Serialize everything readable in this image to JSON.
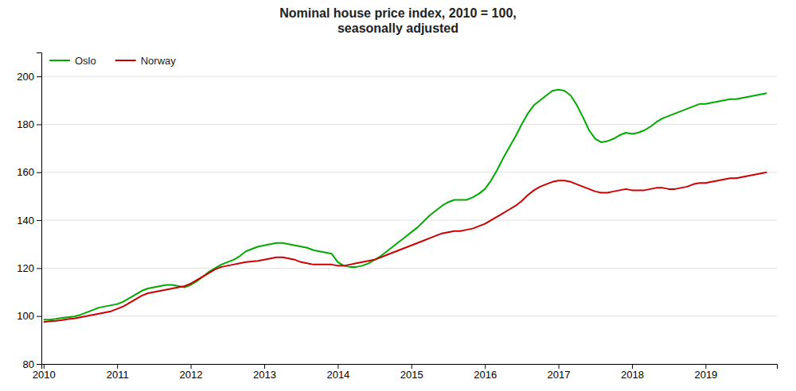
{
  "chart_data": {
    "type": "line",
    "title": "Nominal house price index, 2010 = 100,\nseasonally adjusted",
    "x": [
      2010.0,
      2010.083,
      2010.167,
      2010.25,
      2010.333,
      2010.417,
      2010.5,
      2010.583,
      2010.667,
      2010.75,
      2010.833,
      2010.917,
      2011.0,
      2011.083,
      2011.167,
      2011.25,
      2011.333,
      2011.417,
      2011.5,
      2011.583,
      2011.667,
      2011.75,
      2011.833,
      2011.917,
      2012.0,
      2012.083,
      2012.167,
      2012.25,
      2012.333,
      2012.417,
      2012.5,
      2012.583,
      2012.667,
      2012.75,
      2012.833,
      2012.917,
      2013.0,
      2013.083,
      2013.167,
      2013.25,
      2013.333,
      2013.417,
      2013.5,
      2013.583,
      2013.667,
      2013.75,
      2013.833,
      2013.917,
      2014.0,
      2014.083,
      2014.167,
      2014.25,
      2014.333,
      2014.417,
      2014.5,
      2014.583,
      2014.667,
      2014.75,
      2014.833,
      2014.917,
      2015.0,
      2015.083,
      2015.167,
      2015.25,
      2015.333,
      2015.417,
      2015.5,
      2015.583,
      2015.667,
      2015.75,
      2015.833,
      2015.917,
      2016.0,
      2016.083,
      2016.167,
      2016.25,
      2016.333,
      2016.417,
      2016.5,
      2016.583,
      2016.667,
      2016.75,
      2016.833,
      2016.917,
      2017.0,
      2017.083,
      2017.167,
      2017.25,
      2017.333,
      2017.417,
      2017.5,
      2017.583,
      2017.667,
      2017.75,
      2017.833,
      2017.917,
      2018.0,
      2018.083,
      2018.167,
      2018.25,
      2018.333,
      2018.417,
      2018.5,
      2018.583,
      2018.667,
      2018.75,
      2018.833,
      2018.917,
      2019.0,
      2019.083,
      2019.167,
      2019.25,
      2019.333,
      2019.417,
      2019.5,
      2019.583,
      2019.667,
      2019.75,
      2019.833
    ],
    "series": [
      {
        "name": "Oslo",
        "color": "#00aa00",
        "values": [
          98.5,
          98.5,
          98.8,
          99.2,
          99.5,
          99.8,
          100.5,
          101.5,
          102.5,
          103.5,
          104.0,
          104.5,
          105.0,
          106.0,
          107.5,
          109.0,
          110.5,
          111.5,
          112.0,
          112.5,
          113.0,
          113.0,
          112.5,
          112.0,
          113.0,
          114.5,
          116.5,
          118.5,
          120.0,
          121.5,
          122.5,
          123.5,
          125.0,
          127.0,
          128.0,
          129.0,
          129.5,
          130.0,
          130.5,
          130.5,
          130.0,
          129.5,
          129.0,
          128.5,
          127.5,
          127.0,
          126.5,
          126.0,
          122.5,
          121.0,
          120.5,
          120.5,
          121.0,
          122.0,
          123.5,
          125.0,
          127.0,
          129.0,
          131.0,
          133.0,
          135.0,
          137.0,
          139.5,
          142.0,
          144.0,
          146.0,
          147.5,
          148.5,
          148.5,
          148.5,
          149.5,
          151.0,
          153.0,
          156.5,
          161.0,
          166.0,
          170.5,
          175.0,
          180.0,
          184.5,
          188.0,
          190.0,
          192.0,
          194.0,
          194.5,
          194.0,
          192.0,
          188.0,
          183.0,
          177.5,
          174.0,
          172.5,
          173.0,
          174.0,
          175.5,
          176.5,
          176.0,
          176.5,
          177.5,
          179.0,
          181.0,
          182.5,
          183.5,
          184.5,
          185.5,
          186.5,
          187.5,
          188.5,
          188.5,
          189.0,
          189.5,
          190.0,
          190.5,
          190.5,
          191.0,
          191.5,
          192.0,
          192.5,
          193.0
        ]
      },
      {
        "name": "Norway",
        "color": "#cc0000",
        "values": [
          97.5,
          97.8,
          98.0,
          98.3,
          98.7,
          99.0,
          99.5,
          100.0,
          100.5,
          101.0,
          101.5,
          102.0,
          103.0,
          104.0,
          105.5,
          107.0,
          108.5,
          109.5,
          110.0,
          110.5,
          111.0,
          111.5,
          112.0,
          112.5,
          113.5,
          115.0,
          116.5,
          118.0,
          119.5,
          120.5,
          121.0,
          121.5,
          122.0,
          122.5,
          122.8,
          123.0,
          123.5,
          124.0,
          124.5,
          124.5,
          124.0,
          123.5,
          122.5,
          122.0,
          121.5,
          121.5,
          121.5,
          121.5,
          121.0,
          121.0,
          121.5,
          122.0,
          122.5,
          123.0,
          123.5,
          124.5,
          125.5,
          126.5,
          127.5,
          128.5,
          129.5,
          130.5,
          131.5,
          132.5,
          133.5,
          134.5,
          135.0,
          135.5,
          135.5,
          136.0,
          136.5,
          137.5,
          138.5,
          140.0,
          141.5,
          143.0,
          144.5,
          146.0,
          148.0,
          150.5,
          152.5,
          154.0,
          155.0,
          156.0,
          156.5,
          156.5,
          156.0,
          155.0,
          154.0,
          153.0,
          152.0,
          151.5,
          151.5,
          152.0,
          152.5,
          153.0,
          152.5,
          152.5,
          152.5,
          153.0,
          153.5,
          153.5,
          153.0,
          153.0,
          153.5,
          154.0,
          155.0,
          155.5,
          155.5,
          156.0,
          156.5,
          157.0,
          157.5,
          157.5,
          158.0,
          158.5,
          159.0,
          159.5,
          160.0
        ]
      }
    ],
    "xlim": [
      2009.97,
      2019.97
    ],
    "xticks": [
      2010,
      2011,
      2012,
      2013,
      2014,
      2015,
      2016,
      2017,
      2018,
      2019
    ],
    "ylim": [
      80,
      210
    ],
    "yticks": [
      80,
      100,
      120,
      140,
      160,
      180,
      200
    ],
    "grid": true,
    "legend": "upper left"
  }
}
